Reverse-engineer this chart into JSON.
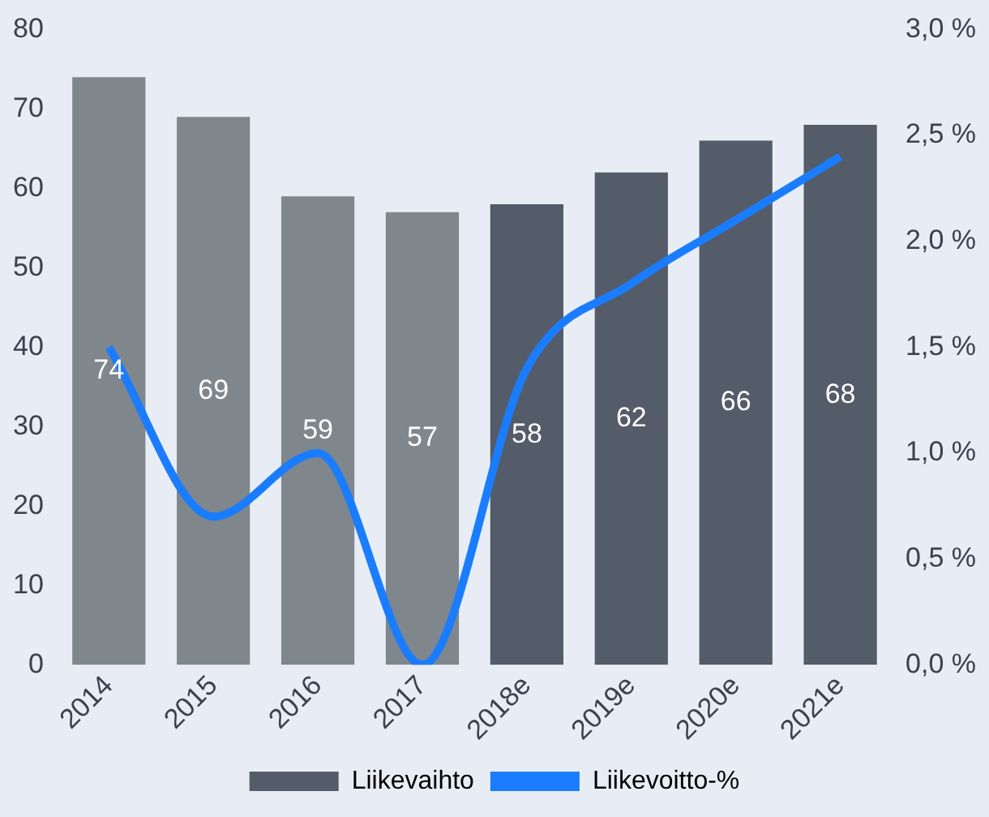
{
  "chart_data": {
    "type": "bar",
    "categories": [
      "2014",
      "2015",
      "2016",
      "2017",
      "2018e",
      "2019e",
      "2020e",
      "2021e"
    ],
    "series": [
      {
        "name": "Liikevaihto",
        "color": "#545c69",
        "colors": [
          "#7f878d",
          "#7f878d",
          "#7f878d",
          "#7f878d",
          "#545c69",
          "#545c69",
          "#545c69",
          "#545c69"
        ],
        "values": [
          74,
          69,
          59,
          57,
          58,
          62,
          66,
          68
        ],
        "value_labels": [
          "74",
          "69",
          "59",
          "57",
          "58",
          "62",
          "66",
          "68"
        ]
      },
      {
        "name": "Liikevoitto-%",
        "type": "line",
        "axis": "y2",
        "color": "#1a7cff",
        "values": [
          1.5,
          0.7,
          1.0,
          0.0,
          1.4,
          1.8,
          2.1,
          2.4
        ]
      }
    ],
    "ylim": [
      0,
      80
    ],
    "yticks": [
      0,
      10,
      20,
      30,
      40,
      50,
      60,
      70,
      80
    ],
    "y2lim": [
      0,
      3
    ],
    "y2ticks": [
      {
        "value": 0,
        "label": "0,0 %"
      },
      {
        "value": 0.5,
        "label": "0,5 %"
      },
      {
        "value": 1,
        "label": "1,0 %"
      },
      {
        "value": 1.5,
        "label": "1,5 %"
      },
      {
        "value": 2,
        "label": "2,0 %"
      },
      {
        "value": 2.5,
        "label": "2,5 %"
      },
      {
        "value": 3,
        "label": "3,0 %"
      }
    ],
    "grid": false,
    "legend": "bottom",
    "marker": "none"
  }
}
